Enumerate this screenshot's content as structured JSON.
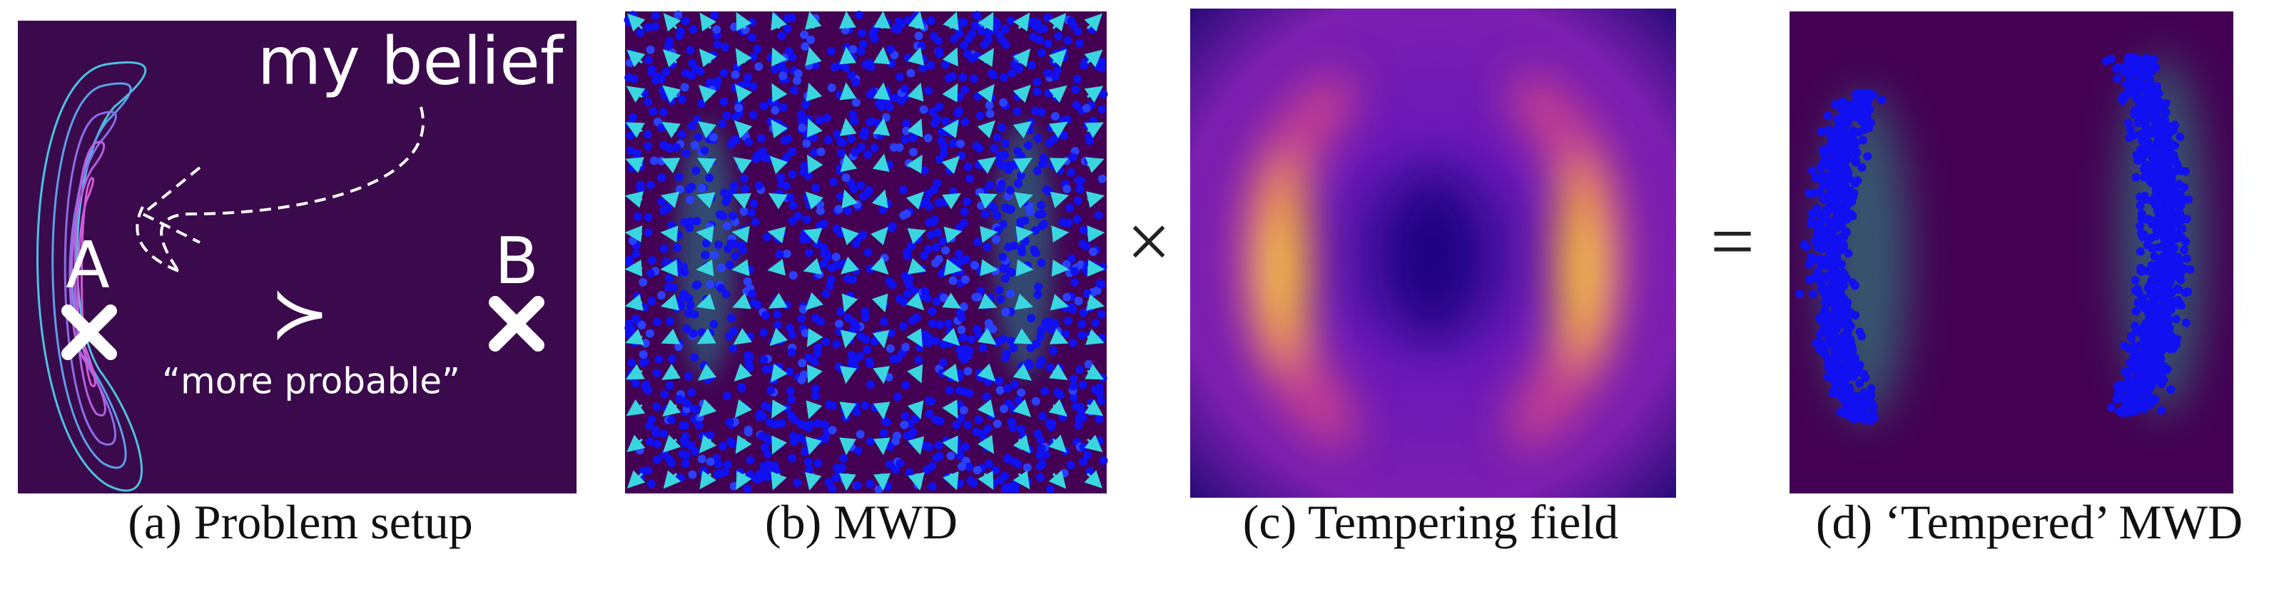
{
  "panels": [
    {
      "label": "(a)",
      "caption": "Problem setup",
      "annotations": {
        "belief": "my belief",
        "a": "A",
        "b": "B",
        "relation": "≻",
        "relation_note": "“more probable”"
      }
    },
    {
      "label": "(b)",
      "caption": "MWD"
    },
    {
      "label": "(c)",
      "caption": "Tempering field"
    },
    {
      "label": "(d)",
      "caption": "‘Tempered’ MWD"
    }
  ],
  "operators": [
    "×",
    "="
  ]
}
